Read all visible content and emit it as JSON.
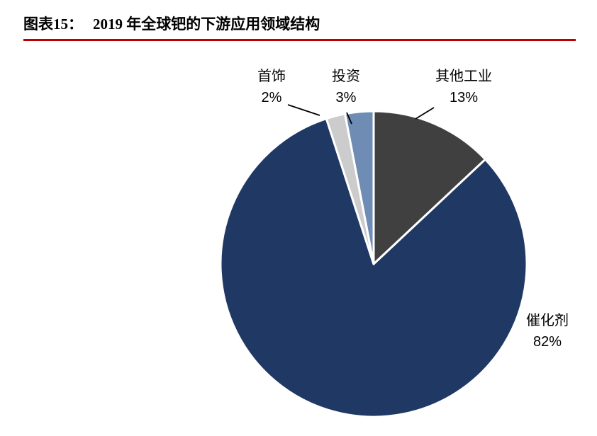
{
  "header": {
    "figure_label": "图表15：",
    "title": "2019 年全球钯的下游应用领域结构",
    "rule_color": "#C00000"
  },
  "chart_data": {
    "type": "pie",
    "title": "2019 年全球钯的下游应用领域结构",
    "start_angle_deg": 0,
    "direction": "clockwise",
    "legend_position": "none",
    "slices": [
      {
        "key": "other-industry",
        "label": "其他工业",
        "value": 13,
        "percent_label": "13%",
        "color": "#404040"
      },
      {
        "key": "catalyst",
        "label": "催化剂",
        "value": 82,
        "percent_label": "82%",
        "color": "#1F3864"
      },
      {
        "key": "jewelry",
        "label": "首饰",
        "value": 2,
        "percent_label": "2%",
        "color": "#CCCCCC"
      },
      {
        "key": "investment",
        "label": "投资",
        "value": 3,
        "percent_label": "3%",
        "color": "#6E8CB4"
      }
    ]
  }
}
